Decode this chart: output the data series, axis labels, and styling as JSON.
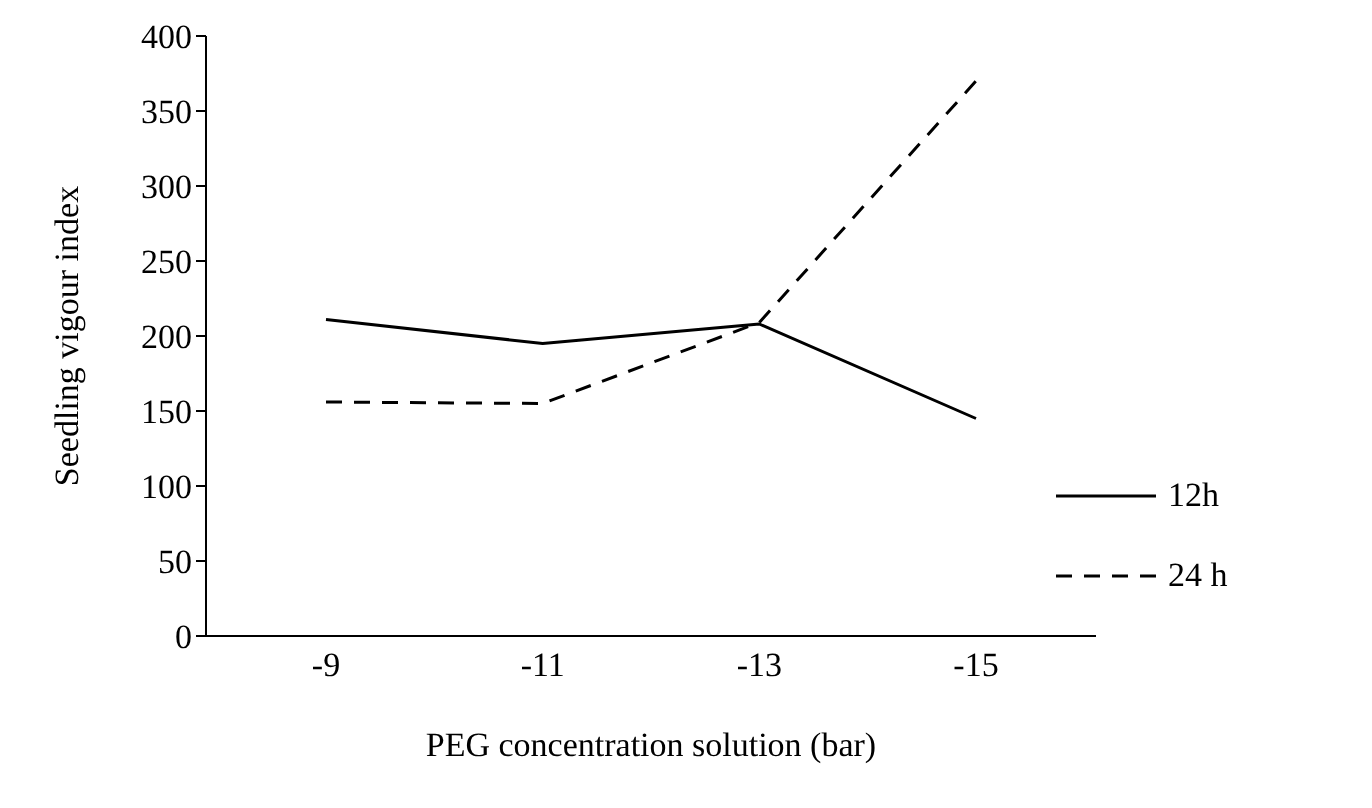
{
  "chart_data": {
    "type": "line",
    "xlabel": "PEG concentration solution (bar)",
    "ylabel": "Seedling vigour index",
    "categories": [
      "-9",
      "-11",
      "-13",
      "-15"
    ],
    "series": [
      {
        "name": "12h",
        "color": "#000000",
        "line_style": "solid",
        "values": [
          211,
          195,
          208,
          145
        ]
      },
      {
        "name": "24 h",
        "color": "#000000",
        "line_style": "dashed",
        "values": [
          156,
          155,
          209,
          370
        ]
      }
    ],
    "ylim": [
      0,
      400
    ],
    "yticks": [
      0,
      50,
      100,
      150,
      200,
      250,
      300,
      350,
      400
    ],
    "grid": false,
    "legend": "bottom right",
    "marker": "none"
  }
}
